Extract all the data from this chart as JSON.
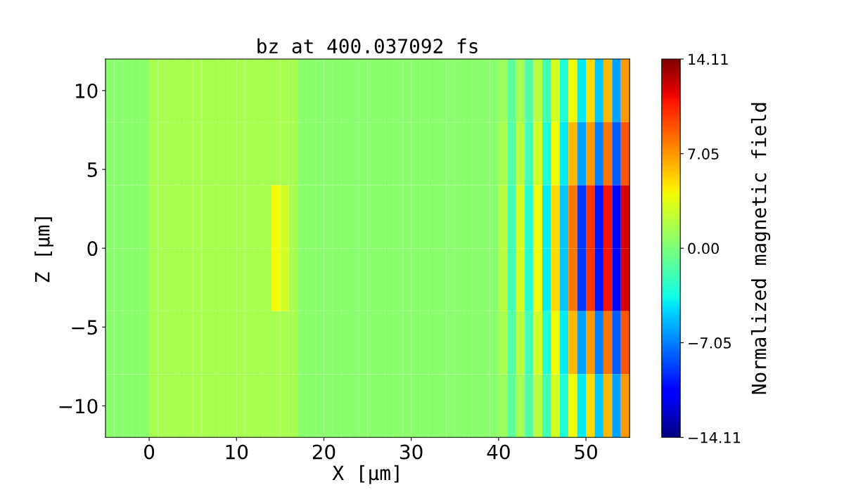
{
  "chart_data": {
    "type": "heatmap",
    "title": "bz at 400.037092 fs",
    "xlabel": "X [μm]",
    "ylabel": "Z [μm]",
    "clabel": "Normalized magnetic field",
    "x": [
      -4.5,
      -3.5,
      -2.5,
      -1.5,
      -0.5,
      0.5,
      1.5,
      2.5,
      3.5,
      4.5,
      5.5,
      6.5,
      7.5,
      8.5,
      9.5,
      10.5,
      11.5,
      12.5,
      13.5,
      14.5,
      15.5,
      16.5,
      17.5,
      18.5,
      19.5,
      20.5,
      21.5,
      22.5,
      23.5,
      24.5,
      25.5,
      26.5,
      27.5,
      28.5,
      29.5,
      30.5,
      31.5,
      32.5,
      33.5,
      34.5,
      35.5,
      36.5,
      37.5,
      38.5,
      39.5,
      40.5,
      41.5,
      42.5,
      43.5,
      44.5,
      45.5,
      46.5,
      47.5,
      48.5,
      49.5,
      50.5,
      51.5,
      52.5,
      53.5,
      54.5
    ],
    "y": [
      10,
      6,
      2,
      -2,
      -6,
      -10
    ],
    "cells": [
      [
        0.5,
        0.5,
        0.5,
        0.5,
        0.5,
        1.5,
        1.5,
        1.5,
        1.5,
        1.5,
        1.5,
        1.5,
        1.5,
        1.5,
        1.5,
        1.5,
        1.5,
        1.5,
        1.5,
        1.5,
        1.5,
        1.5,
        0.5,
        0.5,
        0.5,
        0.5,
        0.5,
        0.5,
        0.5,
        0.5,
        0.5,
        0.5,
        0.5,
        0.5,
        0.5,
        0.5,
        0.5,
        0.5,
        0.5,
        0.5,
        0.5,
        0.5,
        0.5,
        0.5,
        0.5,
        1,
        -1,
        1.5,
        -1.5,
        2,
        -2,
        3,
        -3,
        4,
        -4,
        5,
        -5,
        6,
        -6,
        7
      ],
      [
        0.5,
        0.5,
        0.5,
        0.5,
        0.5,
        1.5,
        1.5,
        1.5,
        1.5,
        1.5,
        1.5,
        1.5,
        1.5,
        1.5,
        1.5,
        1.5,
        1.5,
        1.5,
        1.5,
        1.5,
        1.5,
        1.5,
        0.5,
        0.5,
        0.5,
        0.5,
        0.5,
        0.5,
        0.5,
        0.5,
        0.5,
        0.5,
        0.5,
        0.5,
        0.5,
        0.5,
        0.5,
        0.5,
        0.5,
        0.5,
        0.5,
        0.5,
        0.5,
        0.5,
        0.5,
        1.5,
        -1.5,
        2,
        -2,
        3,
        -3,
        4,
        -4,
        6,
        -6,
        7,
        -7,
        8,
        -8,
        9
      ],
      [
        0.5,
        0.5,
        0.5,
        0.5,
        0.5,
        1.5,
        1.5,
        1.5,
        1.5,
        1.5,
        1.5,
        1.5,
        1.5,
        1.5,
        1.5,
        1.5,
        1.5,
        1.5,
        1.5,
        4,
        3,
        1.5,
        0.5,
        0.5,
        0.5,
        0.5,
        0.5,
        0.5,
        0.5,
        0.5,
        0.5,
        0.5,
        0.5,
        0.5,
        0.5,
        0.5,
        0.5,
        0.5,
        0.5,
        0.5,
        0.5,
        0.5,
        0.5,
        0.5,
        0.5,
        2,
        -2,
        3,
        -3,
        4,
        -4,
        5,
        -5,
        8,
        -9,
        10,
        -10,
        11,
        -11,
        12
      ],
      [
        0.5,
        0.5,
        0.5,
        0.5,
        0.5,
        1.5,
        1.5,
        1.5,
        1.5,
        1.5,
        1.5,
        1.5,
        1.5,
        1.5,
        1.5,
        1.5,
        1.5,
        1.5,
        1.5,
        4,
        3,
        1.5,
        0.5,
        0.5,
        0.5,
        0.5,
        0.5,
        0.5,
        0.5,
        0.5,
        0.5,
        0.5,
        0.5,
        0.5,
        0.5,
        0.5,
        0.5,
        0.5,
        0.5,
        0.5,
        0.5,
        0.5,
        0.5,
        0.5,
        0.5,
        2,
        -2,
        3,
        -3,
        4,
        -4,
        5,
        -5,
        8,
        -9,
        10,
        -10,
        11,
        -11,
        12
      ],
      [
        0.5,
        0.5,
        0.5,
        0.5,
        0.5,
        1.5,
        1.5,
        1.5,
        1.5,
        1.5,
        1.5,
        1.5,
        1.5,
        1.5,
        1.5,
        1.5,
        1.5,
        1.5,
        1.5,
        1.5,
        1.5,
        1.5,
        0.5,
        0.5,
        0.5,
        0.5,
        0.5,
        0.5,
        0.5,
        0.5,
        0.5,
        0.5,
        0.5,
        0.5,
        0.5,
        0.5,
        0.5,
        0.5,
        0.5,
        0.5,
        0.5,
        0.5,
        0.5,
        0.5,
        0.5,
        1.5,
        -1.5,
        2,
        -2,
        3,
        -3,
        4,
        -4,
        6,
        -6,
        7,
        -7,
        8,
        -8,
        9
      ],
      [
        0.5,
        0.5,
        0.5,
        0.5,
        0.5,
        1.5,
        1.5,
        1.5,
        1.5,
        1.5,
        1.5,
        1.5,
        1.5,
        1.5,
        1.5,
        1.5,
        1.5,
        1.5,
        1.5,
        1.5,
        1.5,
        1.5,
        0.5,
        0.5,
        0.5,
        0.5,
        0.5,
        0.5,
        0.5,
        0.5,
        0.5,
        0.5,
        0.5,
        0.5,
        0.5,
        0.5,
        0.5,
        0.5,
        0.5,
        0.5,
        0.5,
        0.5,
        0.5,
        0.5,
        0.5,
        1,
        -1,
        1.5,
        -1.5,
        2,
        -2,
        3,
        -3,
        4,
        -4,
        5,
        -5,
        6,
        -6,
        7
      ]
    ],
    "xlim": [
      -5,
      55
    ],
    "xticks": [
      0,
      10,
      20,
      30,
      40,
      50
    ],
    "ylim": [
      -12,
      12
    ],
    "yticks": [
      {
        "value": -10,
        "label": "−10"
      },
      {
        "value": -5,
        "label": "−5"
      },
      0,
      5,
      10
    ],
    "clim": [
      -14.11,
      14.11
    ],
    "cticks": [
      {
        "value": -14.11,
        "label": "−14.11"
      },
      {
        "value": -7.05,
        "label": "−7.05"
      },
      {
        "value": 0,
        "label": "0.00"
      },
      7.05,
      14.11
    ]
  }
}
